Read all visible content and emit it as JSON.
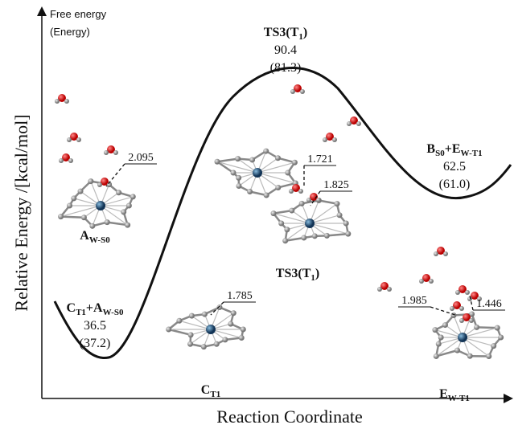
{
  "axes": {
    "y_note_top": "Free energy",
    "y_note_bottom": "(Energy)",
    "y_label": "Relative Energy /[kcal/mol]",
    "x_label": "Reaction Coordinate"
  },
  "states": [
    {
      "name": [
        "C",
        "T1",
        "+A",
        "W-S0"
      ],
      "free_energy": "36.5",
      "energy": "(37.2)"
    },
    {
      "name": [
        "TS3(T",
        "1",
        ")"
      ],
      "free_energy": "90.4",
      "energy": "(81.3)"
    },
    {
      "name": [
        "B",
        "S0",
        "+E",
        "W-T1"
      ],
      "free_energy": "62.5",
      "energy": "(61.0)"
    }
  ],
  "structures": [
    {
      "name": [
        "A",
        "W-S0"
      ],
      "distances": [
        "2.095"
      ]
    },
    {
      "name": [
        "C",
        "T1"
      ],
      "distances": [
        "1.785"
      ]
    },
    {
      "name": [
        "TS3(T",
        "1",
        ")"
      ],
      "distances": [
        "1.721",
        "1.825"
      ]
    },
    {
      "name": [
        "E",
        "W-T1"
      ],
      "distances": [
        "1.985",
        "1.446"
      ]
    }
  ]
}
